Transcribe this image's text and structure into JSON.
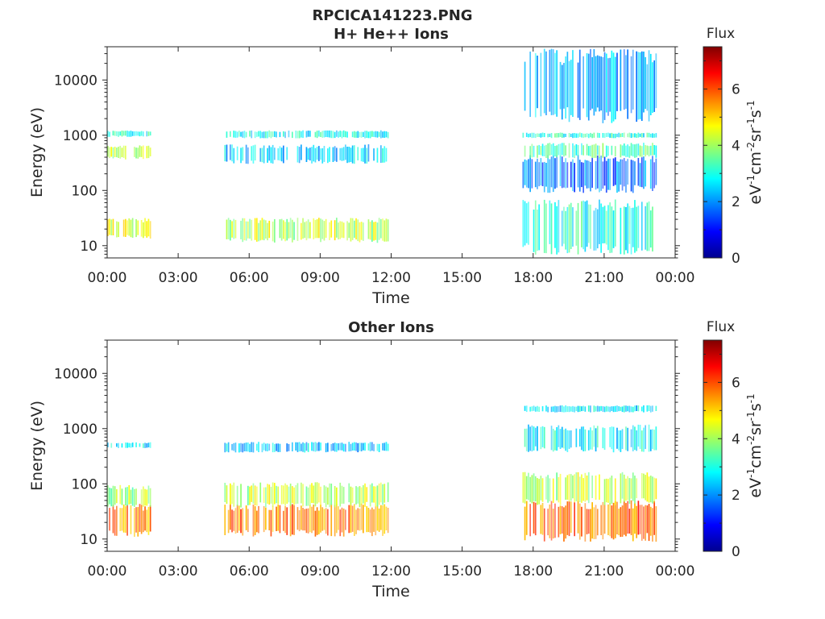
{
  "figure": {
    "title_line1": "RPCICA141223.PNG"
  },
  "colorbar": {
    "label": "Flux",
    "unit_parts": [
      {
        "t": "eV"
      },
      {
        "t": "-1",
        "sup": true
      },
      {
        "t": "cm"
      },
      {
        "t": "-2",
        "sup": true
      },
      {
        "t": "sr"
      },
      {
        "t": "-1",
        "sup": true
      },
      {
        "t": "s"
      },
      {
        "t": "-1",
        "sup": true
      }
    ],
    "range": [
      0,
      7.5
    ],
    "ticks": [
      "0",
      "2",
      "4",
      "6"
    ],
    "colormap": "jet"
  },
  "chart_data": [
    {
      "type": "heatmap",
      "title": "H+ He++ Ions",
      "xlabel": "Time",
      "ylabel": "Energy (eV)",
      "x_ticks": [
        "00:00",
        "03:00",
        "06:00",
        "09:00",
        "12:00",
        "15:00",
        "18:00",
        "21:00",
        "00:00"
      ],
      "xlim_hours": [
        0,
        24
      ],
      "y_scale": "log",
      "y_ticks": [
        "10",
        "100",
        "1000",
        "10000"
      ],
      "ylim": [
        6,
        40000
      ],
      "data_intervals_hours": [
        [
          0,
          1.85
        ],
        [
          4.95,
          11.85
        ],
        [
          17.55,
          23.2
        ]
      ],
      "bands": [
        {
          "t": [
            0,
            1.85
          ],
          "e": [
            14,
            30
          ],
          "flux": 4.4
        },
        {
          "t": [
            0,
            1.85
          ],
          "e": [
            380,
            650
          ],
          "flux": 4.3
        },
        {
          "t": [
            0,
            1.85
          ],
          "e": [
            950,
            1200
          ],
          "flux": 3.0
        },
        {
          "t": [
            4.95,
            11.85
          ],
          "e": [
            12,
            30
          ],
          "flux": 4.2
        },
        {
          "t": [
            4.95,
            11.85
          ],
          "e": [
            320,
            650
          ],
          "flux": 2.5
        },
        {
          "t": [
            4.95,
            11.85
          ],
          "e": [
            900,
            1200
          ],
          "flux": 2.8
        },
        {
          "t": [
            17.55,
            23.2
          ],
          "e": [
            8,
            60
          ],
          "flux": 3.0
        },
        {
          "t": [
            17.55,
            23.2
          ],
          "e": [
            100,
            400
          ],
          "flux": 1.8
        },
        {
          "t": [
            17.55,
            23.2
          ],
          "e": [
            400,
            700
          ],
          "flux": 3.3
        },
        {
          "t": [
            17.55,
            23.2
          ],
          "e": [
            900,
            1100
          ],
          "flux": 3.0
        },
        {
          "t": [
            17.55,
            23.2
          ],
          "e": [
            2000,
            30000
          ],
          "flux": 2.2
        }
      ]
    },
    {
      "type": "heatmap",
      "title": "Other Ions",
      "xlabel": "Time",
      "ylabel": "Energy (eV)",
      "x_ticks": [
        "00:00",
        "03:00",
        "06:00",
        "09:00",
        "12:00",
        "15:00",
        "18:00",
        "21:00",
        "00:00"
      ],
      "xlim_hours": [
        0,
        24
      ],
      "y_scale": "log",
      "y_ticks": [
        "10",
        "100",
        "1000",
        "10000"
      ],
      "ylim": [
        6,
        40000
      ],
      "data_intervals_hours": [
        [
          0,
          1.85
        ],
        [
          4.95,
          11.85
        ],
        [
          17.55,
          23.2
        ]
      ],
      "bands": [
        {
          "t": [
            0,
            1.85
          ],
          "e": [
            12,
            40
          ],
          "flux": 5.5
        },
        {
          "t": [
            0,
            1.85
          ],
          "e": [
            40,
            90
          ],
          "flux": 4.0
        },
        {
          "t": [
            0,
            1.85
          ],
          "e": [
            450,
            560
          ],
          "flux": 2.6
        },
        {
          "t": [
            4.95,
            11.85
          ],
          "e": [
            12,
            40
          ],
          "flux": 5.6
        },
        {
          "t": [
            4.95,
            11.85
          ],
          "e": [
            40,
            100
          ],
          "flux": 4.2
        },
        {
          "t": [
            4.95,
            11.85
          ],
          "e": [
            380,
            560
          ],
          "flux": 2.4
        },
        {
          "t": [
            17.55,
            23.2
          ],
          "e": [
            10,
            45
          ],
          "flux": 5.8
        },
        {
          "t": [
            17.55,
            23.2
          ],
          "e": [
            45,
            150
          ],
          "flux": 4.2
        },
        {
          "t": [
            17.55,
            23.2
          ],
          "e": [
            400,
            1100
          ],
          "flux": 2.8
        },
        {
          "t": [
            17.55,
            23.2
          ],
          "e": [
            2000,
            2600
          ],
          "flux": 2.6
        }
      ]
    }
  ]
}
